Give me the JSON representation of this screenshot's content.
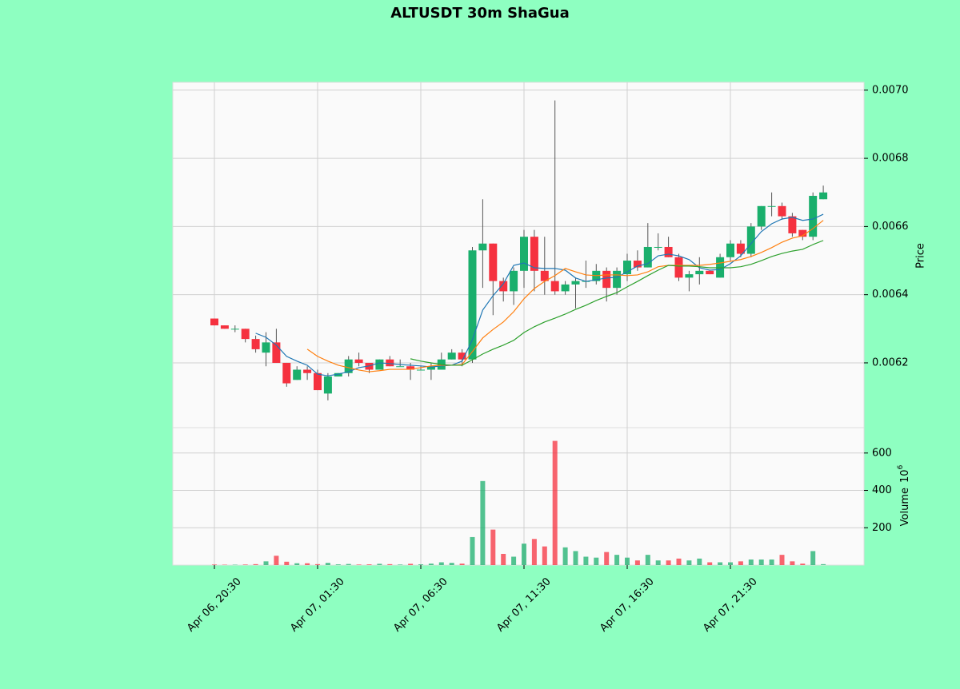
{
  "chart_data": {
    "type": "candlestick",
    "title": "ALTUSDT 30m ShaGua",
    "ylabel": "Price",
    "volume_ylabel": "Volume",
    "volume_exponent": {
      "base": "10",
      "power": "6"
    },
    "categories": [
      "Apr 06, 20:30",
      null,
      null,
      null,
      null,
      null,
      null,
      null,
      null,
      null,
      "Apr 07, 01:30",
      null,
      null,
      null,
      null,
      null,
      null,
      null,
      null,
      null,
      "Apr 07, 06:30",
      null,
      null,
      null,
      null,
      null,
      null,
      null,
      null,
      null,
      "Apr 07, 11:30",
      null,
      null,
      null,
      null,
      null,
      null,
      null,
      null,
      null,
      "Apr 07, 16:30",
      null,
      null,
      null,
      null,
      null,
      null,
      null,
      null,
      null,
      "Apr 07, 21:30",
      null,
      null,
      null,
      null,
      null,
      null,
      null,
      null,
      null
    ],
    "open": [
      0.00633,
      0.00631,
      0.0063,
      0.0063,
      0.00627,
      0.00623,
      0.00626,
      0.0062,
      0.00615,
      0.00618,
      0.00617,
      0.00611,
      0.00616,
      0.00617,
      0.00621,
      0.0062,
      0.00618,
      0.00621,
      0.00619,
      0.00619,
      0.00618,
      0.00618,
      0.00618,
      0.00621,
      0.00623,
      0.00621,
      0.00653,
      0.00655,
      0.00644,
      0.00641,
      0.00647,
      0.00657,
      0.00647,
      0.00644,
      0.00641,
      0.00643,
      0.00644,
      0.00644,
      0.00647,
      0.00642,
      0.00646,
      0.0065,
      0.00648,
      0.00654,
      0.00654,
      0.00651,
      0.00645,
      0.00646,
      0.00647,
      0.00645,
      0.00651,
      0.00655,
      0.00652,
      0.0066,
      0.00666,
      0.00666,
      0.00663,
      0.00659,
      0.00657,
      0.00668
    ],
    "high": [
      0.00633,
      0.00631,
      0.00631,
      0.0063,
      0.00628,
      0.00629,
      0.0063,
      0.0062,
      0.00619,
      0.00619,
      0.00618,
      0.00617,
      0.00617,
      0.00622,
      0.00623,
      0.0062,
      0.00621,
      0.00622,
      0.00621,
      0.0062,
      0.00619,
      0.0062,
      0.00623,
      0.00624,
      0.00624,
      0.00654,
      0.00668,
      0.00655,
      0.00645,
      0.00648,
      0.00659,
      0.00659,
      0.00657,
      0.00697,
      0.00644,
      0.00645,
      0.0065,
      0.00649,
      0.00648,
      0.00648,
      0.00652,
      0.00653,
      0.00661,
      0.00658,
      0.00657,
      0.00652,
      0.00647,
      0.00651,
      0.00647,
      0.00652,
      0.00656,
      0.00656,
      0.00661,
      0.00666,
      0.0067,
      0.00667,
      0.00664,
      0.00659,
      0.0067,
      0.00672
    ],
    "low": [
      0.00631,
      0.0063,
      0.00629,
      0.00626,
      0.00623,
      0.00619,
      0.0062,
      0.00613,
      0.00615,
      0.00615,
      0.00612,
      0.00609,
      0.00616,
      0.00616,
      0.00619,
      0.00617,
      0.00618,
      0.00619,
      0.00619,
      0.00615,
      0.00618,
      0.00615,
      0.00618,
      0.00621,
      0.00619,
      0.0062,
      0.00642,
      0.00634,
      0.00638,
      0.00637,
      0.00642,
      0.00641,
      0.0064,
      0.0064,
      0.0064,
      0.00636,
      0.00642,
      0.00643,
      0.00638,
      0.0064,
      0.00644,
      0.00647,
      0.00648,
      0.00653,
      0.00651,
      0.00644,
      0.00641,
      0.00643,
      0.00646,
      0.00645,
      0.0065,
      0.00651,
      0.00651,
      0.00659,
      0.00663,
      0.00662,
      0.00657,
      0.00656,
      0.00656,
      0.00668
    ],
    "close": [
      0.00631,
      0.0063,
      0.0063,
      0.00627,
      0.00624,
      0.00626,
      0.0062,
      0.00614,
      0.00618,
      0.00617,
      0.00612,
      0.00616,
      0.00617,
      0.00621,
      0.0062,
      0.00618,
      0.00621,
      0.00619,
      0.00619,
      0.00618,
      0.00618,
      0.00619,
      0.00621,
      0.00623,
      0.00621,
      0.00653,
      0.00655,
      0.00644,
      0.00641,
      0.00647,
      0.00657,
      0.00647,
      0.00644,
      0.00641,
      0.00643,
      0.00644,
      0.00644,
      0.00647,
      0.00642,
      0.00647,
      0.0065,
      0.00648,
      0.00654,
      0.00654,
      0.00651,
      0.00645,
      0.00646,
      0.00647,
      0.00646,
      0.00651,
      0.00655,
      0.00652,
      0.0066,
      0.00666,
      0.00666,
      0.00663,
      0.00658,
      0.00657,
      0.00669,
      0.0067
    ],
    "volume": [
      3,
      2,
      2,
      3,
      5,
      20,
      50,
      18,
      10,
      10,
      5,
      12,
      4,
      6,
      3,
      4,
      7,
      5,
      3,
      7,
      4,
      8,
      15,
      12,
      8,
      150,
      450,
      190,
      60,
      45,
      115,
      140,
      100,
      665,
      95,
      75,
      45,
      40,
      70,
      55,
      40,
      25,
      55,
      25,
      25,
      35,
      25,
      35,
      15,
      15,
      15,
      20,
      30,
      30,
      30,
      55,
      20,
      8,
      75,
      5
    ],
    "up_color": "#1aaf6c",
    "down_color": "#f5313f",
    "wick_color": "#555555",
    "moving_averages": [
      {
        "color": "#1f77b4",
        "values": [
          null,
          null,
          null,
          null,
          0.006287,
          0.006275,
          0.006252,
          0.006219,
          0.006205,
          0.006193,
          0.006167,
          0.006162,
          0.006167,
          0.006174,
          0.006186,
          0.006191,
          0.0062,
          0.006198,
          0.006195,
          0.006193,
          0.006191,
          0.006188,
          0.006191,
          0.006193,
          0.006205,
          0.006268,
          0.006355,
          0.006397,
          0.006432,
          0.006486,
          0.006493,
          0.006479,
          0.006477,
          0.006477,
          0.006472,
          0.006449,
          0.006439,
          0.006444,
          0.006449,
          0.006451,
          0.006467,
          0.006484,
          0.006491,
          0.006514,
          0.006519,
          0.006514,
          0.006503,
          0.006479,
          0.006472,
          0.006474,
          0.006491,
          0.006514,
          0.00655,
          0.006585,
          0.006608,
          0.006622,
          0.006627,
          0.006618,
          0.006622,
          0.006636
        ]
      },
      {
        "color": "#ff7f0e",
        "values": [
          null,
          null,
          null,
          null,
          null,
          null,
          null,
          null,
          null,
          0.00624,
          0.006219,
          0.006205,
          0.006193,
          0.006186,
          0.006179,
          0.006174,
          0.006177,
          0.006181,
          0.006181,
          0.006181,
          0.006186,
          0.006191,
          0.006193,
          0.006193,
          0.006195,
          0.006233,
          0.006273,
          0.006298,
          0.00632,
          0.00635,
          0.006388,
          0.006418,
          0.006439,
          0.006456,
          0.006477,
          0.006467,
          0.006458,
          0.006456,
          0.006458,
          0.006458,
          0.006456,
          0.006458,
          0.006467,
          0.006482,
          0.006486,
          0.006486,
          0.006486,
          0.006486,
          0.006489,
          0.006493,
          0.006498,
          0.006503,
          0.006512,
          0.006524,
          0.006538,
          0.006554,
          0.006566,
          0.006573,
          0.006594,
          0.006618
        ]
      },
      {
        "color": "#2ca02c",
        "values": [
          null,
          null,
          null,
          null,
          null,
          null,
          null,
          null,
          null,
          null,
          null,
          null,
          null,
          null,
          null,
          null,
          null,
          null,
          null,
          0.006212,
          0.006205,
          0.0062,
          0.006195,
          0.006193,
          0.006193,
          0.006209,
          0.006226,
          0.00624,
          0.006252,
          0.006266,
          0.006289,
          0.006306,
          0.00632,
          0.006331,
          0.006343,
          0.006357,
          0.006369,
          0.006383,
          0.006395,
          0.006406,
          0.006423,
          0.006439,
          0.006456,
          0.006472,
          0.006486,
          0.006484,
          0.006484,
          0.006482,
          0.006479,
          0.006479,
          0.006479,
          0.006482,
          0.006489,
          0.0065,
          0.006512,
          0.006521,
          0.006528,
          0.006533,
          0.006547,
          0.006559
        ]
      }
    ],
    "ylim": [
      0.00601,
      0.007023
    ],
    "yticks": [
      0.0062,
      0.0064,
      0.0066,
      0.0068,
      {
        "value": 0.007,
        "label": "0.0070"
      }
    ],
    "volume_ylim": [
      0,
      736
    ],
    "volume_yticks": [
      200,
      400,
      600
    ],
    "grid": true
  }
}
